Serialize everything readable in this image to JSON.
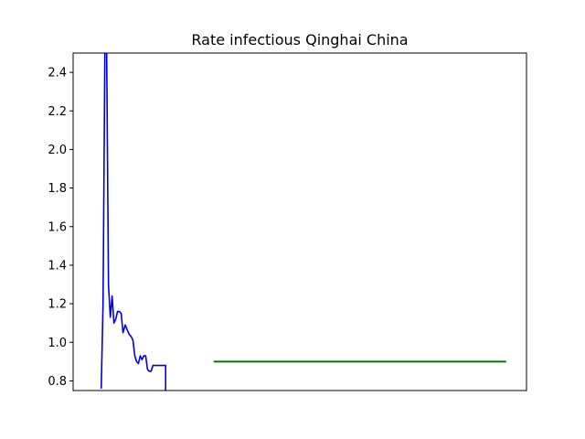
{
  "chart_data": {
    "type": "line",
    "title": "Rate infectious Qinghai China",
    "xlabel": "",
    "ylabel": "",
    "ylim": [
      0.75,
      2.5
    ],
    "xlim": [
      0,
      100
    ],
    "x_ticks_shown": false,
    "y_ticks": [
      0.8,
      1.0,
      1.2,
      1.4,
      1.6,
      1.8,
      2.0,
      2.2,
      2.4
    ],
    "y_tick_labels": [
      "0.8",
      "1.0",
      "1.2",
      "1.4",
      "1.6",
      "1.8",
      "2.0",
      "2.2",
      "2.4"
    ],
    "grid": false,
    "legend": "none",
    "series": [
      {
        "color": "#0000dd",
        "x": [
          6.2,
          6.6,
          7.0,
          7.4,
          7.8,
          8.2,
          8.6,
          9.0,
          9.4,
          9.8,
          10.2,
          10.6,
          11.0,
          11.5,
          12.0,
          12.4,
          12.8,
          13.2,
          13.6,
          14.0,
          14.4,
          14.8,
          15.2,
          15.6,
          16.0,
          16.4,
          16.8,
          17.2,
          17.6,
          18.0,
          18.4,
          18.8,
          19.2,
          19.6,
          20.0,
          20.4,
          20.4
        ],
        "y": [
          0.76,
          1.2,
          2.5,
          2.5,
          1.3,
          1.13,
          1.24,
          1.1,
          1.12,
          1.16,
          1.16,
          1.15,
          1.05,
          1.09,
          1.06,
          1.04,
          1.03,
          1.01,
          0.93,
          0.9,
          0.89,
          0.93,
          0.91,
          0.93,
          0.93,
          0.86,
          0.85,
          0.85,
          0.88,
          0.88,
          0.88,
          0.88,
          0.88,
          0.88,
          0.88,
          0.88,
          0.74
        ]
      },
      {
        "color": "#007700",
        "x": [
          31.0,
          95.5
        ],
        "y": [
          0.9,
          0.9
        ]
      }
    ]
  }
}
